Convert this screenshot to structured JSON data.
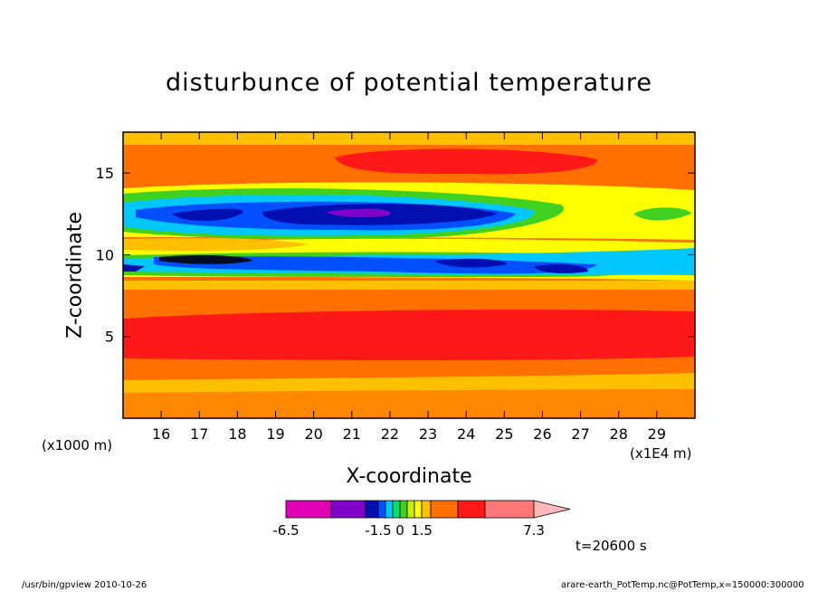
{
  "chart_data": {
    "type": "contour",
    "title": "disturbunce of potential temperature",
    "xlabel": "X-coordinate",
    "ylabel": "Z-coordinate",
    "x_unit_left": "(x1000 m)",
    "x_unit_right": "(x1E4 m)",
    "x_ticks": [
      "16",
      "17",
      "18",
      "19",
      "20",
      "21",
      "22",
      "23",
      "24",
      "25",
      "26",
      "27",
      "28",
      "29"
    ],
    "y_ticks": [
      "5",
      "10",
      "15"
    ],
    "xlim": [
      150000,
      300000
    ],
    "ylim": [
      0,
      17.5
    ],
    "colorbar": {
      "labels": [
        "-6.5",
        "-1.5",
        "0",
        "1.5",
        "7.3"
      ],
      "levels": [
        -6.5,
        -4.5,
        -2.5,
        -1.5,
        -1.0,
        -0.5,
        0,
        0.5,
        1.0,
        1.5,
        3.0,
        4.5,
        7.3
      ],
      "colors": [
        "#e000b4",
        "#8000c8",
        "#0010b0",
        "#0050ff",
        "#00c8ff",
        "#00e070",
        "#40d020",
        "#c8f000",
        "#ffff00",
        "#ffc000",
        "#ff7000",
        "#ff1818",
        "#ff7878"
      ],
      "extend_color": "#ffb8b8"
    },
    "time_label": "t=20600 s"
  },
  "footer": {
    "left": "/usr/bin/gpview   2010-10-26",
    "right": "arare-earth_PotTemp.nc@PotTemp,x=150000:300000"
  }
}
